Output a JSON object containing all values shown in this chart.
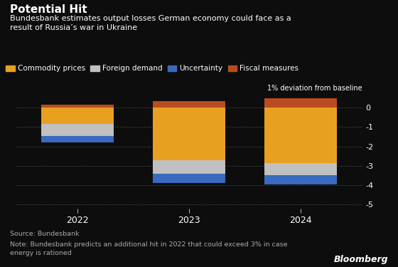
{
  "title_bold": "Potential Hit",
  "subtitle": "Bundesbank estimates output losses German economy could face as a\nresult of Russia’s war in Ukraine",
  "years": [
    "2022",
    "2023",
    "2024"
  ],
  "series": {
    "fiscal_measures": [
      0.15,
      0.35,
      0.5
    ],
    "commodity_prices": [
      -0.85,
      -2.7,
      -2.85
    ],
    "foreign_demand": [
      -0.6,
      -0.7,
      -0.65
    ],
    "uncertainty": [
      -0.35,
      -0.5,
      -0.45
    ]
  },
  "colors": {
    "fiscal_measures": "#b84c20",
    "commodity_prices": "#e8a020",
    "foreign_demand": "#c0c0c0",
    "uncertainty": "#3a6abf"
  },
  "ylabel": "1% deviation from baseline",
  "ylim": [
    -5.2,
    0.6
  ],
  "yticks": [
    0,
    -1,
    -2,
    -3,
    -4,
    -5
  ],
  "source": "Source: Bundesbank",
  "note": "Note: Bundesbank predicts an additional hit in 2022 that could exceed 3% in case\nenergy is rationed",
  "bloomberg": "Bloomberg",
  "background_color": "#0d0d0d",
  "text_color": "#ffffff",
  "bar_width": 0.65
}
